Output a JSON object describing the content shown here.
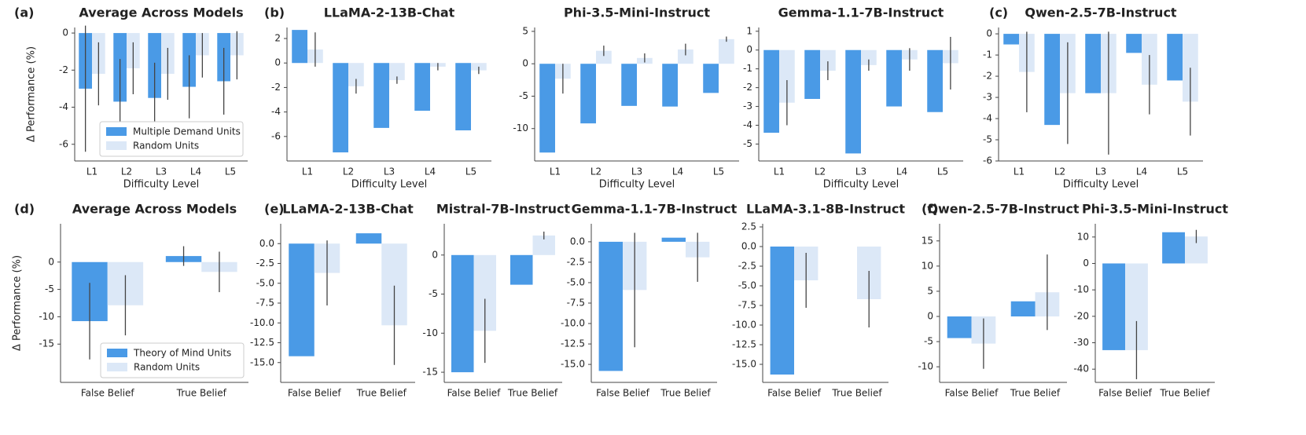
{
  "chart_data": [
    {
      "type": "bar",
      "panel_label": "(a)",
      "title": "Average Across Models",
      "xlabel": "Difficulty Level",
      "ylabel": "Δ Performance (%)",
      "categories": [
        "L1",
        "L2",
        "L3",
        "L4",
        "L5"
      ],
      "series": [
        {
          "name": "Multiple Demand Units",
          "color": "#4a9ae6",
          "values": [
            -3.0,
            -3.7,
            -3.5,
            -2.9,
            -2.6
          ],
          "errors": [
            3.4,
            2.3,
            1.9,
            1.7,
            1.8
          ]
        },
        {
          "name": "Random Units",
          "color": "#dce8f7",
          "values": [
            -2.2,
            -1.9,
            -2.2,
            -1.2,
            -1.2
          ],
          "errors": [
            1.7,
            1.4,
            1.4,
            1.2,
            1.3
          ]
        }
      ],
      "ylim": [
        -6.9,
        0.3
      ],
      "yticks": [
        -6,
        -4,
        -2,
        0
      ],
      "legend": "lower right"
    },
    {
      "type": "bar",
      "panel_label": "(b)",
      "title": "LLaMA-2-13B-Chat",
      "xlabel": "Difficulty Level",
      "categories": [
        "L1",
        "L2",
        "L3",
        "L4",
        "L5"
      ],
      "series": [
        {
          "color": "#4a9ae6",
          "values": [
            2.7,
            -7.3,
            -5.3,
            -3.9,
            -5.5
          ]
        },
        {
          "color": "#dce8f7",
          "values": [
            1.1,
            -1.9,
            -1.4,
            -0.3,
            -0.6
          ],
          "errors": [
            1.4,
            0.6,
            0.3,
            0.3,
            0.3
          ]
        }
      ],
      "ylim": [
        -8,
        2.9
      ],
      "yticks": [
        -6,
        -4,
        -2,
        0,
        2
      ]
    },
    {
      "type": "bar",
      "title": "Phi-3.5-Mini-Instruct",
      "xlabel": "Difficulty Level",
      "categories": [
        "L1",
        "L2",
        "L3",
        "L4",
        "L5"
      ],
      "series": [
        {
          "color": "#4a9ae6",
          "values": [
            -13.7,
            -9.2,
            -6.5,
            -6.6,
            -4.5
          ]
        },
        {
          "color": "#dce8f7",
          "values": [
            -2.3,
            2.0,
            0.9,
            2.2,
            3.8
          ],
          "errors": [
            2.3,
            0.8,
            0.7,
            0.9,
            0.4
          ]
        }
      ],
      "ylim": [
        -15,
        5.6
      ],
      "yticks": [
        -10,
        -5,
        0,
        5
      ]
    },
    {
      "type": "bar",
      "title": "Gemma-1.1-7B-Instruct",
      "xlabel": "Difficulty Level",
      "categories": [
        "L1",
        "L2",
        "L3",
        "L4",
        "L5"
      ],
      "series": [
        {
          "color": "#4a9ae6",
          "values": [
            -4.4,
            -2.6,
            -5.5,
            -3.0,
            -3.3
          ]
        },
        {
          "color": "#dce8f7",
          "values": [
            -2.8,
            -1.1,
            -0.8,
            -0.5,
            -0.7
          ],
          "errors": [
            1.2,
            0.5,
            0.3,
            0.6,
            1.4
          ]
        }
      ],
      "ylim": [
        -5.9,
        1.2
      ],
      "yticks": [
        -5,
        -4,
        -3,
        -2,
        -1,
        0,
        1
      ]
    },
    {
      "type": "bar",
      "panel_label": "(c)",
      "title": "Qwen-2.5-7B-Instruct",
      "xlabel": "Difficulty Level",
      "categories": [
        "L1",
        "L2",
        "L3",
        "L4",
        "L5"
      ],
      "series": [
        {
          "color": "#4a9ae6",
          "values": [
            -0.5,
            -4.3,
            -2.8,
            -0.9,
            -2.2
          ]
        },
        {
          "color": "#dce8f7",
          "values": [
            -1.8,
            -2.8,
            -2.8,
            -2.4,
            -3.2
          ],
          "errors": [
            1.9,
            2.4,
            2.9,
            1.4,
            1.6
          ]
        }
      ],
      "ylim": [
        -6,
        0.3
      ],
      "yticks": [
        -6,
        -5,
        -4,
        -3,
        -2,
        -1,
        0
      ]
    },
    {
      "type": "bar",
      "panel_label": "(d)",
      "title": "Average Across Models",
      "ylabel": "Δ Performance (%)",
      "categories": [
        "False Belief",
        "True Belief"
      ],
      "series": [
        {
          "name": "Theory of Mind Units",
          "color": "#4a9ae6",
          "values": [
            -10.8,
            1.1
          ],
          "errors": [
            7,
            1.8
          ]
        },
        {
          "name": "Random Units",
          "color": "#dce8f7",
          "values": [
            -7.9,
            -1.8
          ],
          "errors": [
            5.5,
            3.7
          ]
        }
      ],
      "ylim": [
        -22,
        7
      ],
      "yticks": [
        -15,
        -10,
        -5,
        0
      ],
      "legend": "lower right"
    },
    {
      "type": "bar",
      "panel_label": "(e)",
      "title": "LLaMA-2-13B-Chat",
      "categories": [
        "False Belief",
        "True Belief"
      ],
      "series": [
        {
          "color": "#4a9ae6",
          "values": [
            -14.2,
            1.3
          ]
        },
        {
          "color": "#dce8f7",
          "values": [
            -3.7,
            -10.3
          ],
          "errors": [
            4.1,
            5.0
          ]
        }
      ],
      "ylim": [
        -17.5,
        2.5
      ],
      "yticks": [
        {
          "value": -15,
          "label": "-15.0"
        },
        -12.5,
        {
          "value": -10,
          "label": "-10.0"
        },
        -7.5,
        {
          "value": -5,
          "label": "-5.0"
        },
        -2.5,
        {
          "value": 0,
          "label": "0.0"
        }
      ]
    },
    {
      "type": "bar",
      "title": "Mistral-7B-Instruct",
      "categories": [
        "False Belief",
        "True Belief"
      ],
      "series": [
        {
          "color": "#4a9ae6",
          "values": [
            -15.0,
            -3.8
          ]
        },
        {
          "color": "#dce8f7",
          "values": [
            -9.7,
            2.5
          ],
          "errors": [
            4.1,
            0.5
          ]
        }
      ],
      "ylim": [
        -16.3,
        4
      ],
      "yticks": [
        -15,
        -10,
        -5,
        0
      ]
    },
    {
      "type": "bar",
      "title": "Gemma-1.1-7B-Instruct",
      "categories": [
        "False Belief",
        "True Belief"
      ],
      "series": [
        {
          "color": "#4a9ae6",
          "values": [
            -15.8,
            0.5
          ]
        },
        {
          "color": "#dce8f7",
          "values": [
            -5.9,
            -1.9
          ],
          "errors": [
            7,
            3.0
          ]
        }
      ],
      "ylim": [
        -17.2,
        2.2
      ],
      "yticks": [
        {
          "value": -15,
          "label": "-15.0"
        },
        -12.5,
        {
          "value": -10,
          "label": "-10.0"
        },
        -7.5,
        {
          "value": -5,
          "label": "-5.0"
        },
        -2.5,
        {
          "value": 0,
          "label": "0.0"
        }
      ]
    },
    {
      "type": "bar",
      "title": "LLaMA-3.1-8B-Instruct",
      "categories": [
        "False Belief",
        "True Belief"
      ],
      "series": [
        {
          "color": "#4a9ae6",
          "values": [
            -16.3,
            0
          ]
        },
        {
          "color": "#dce8f7",
          "values": [
            -4.3,
            -6.7
          ],
          "errors": [
            3.5,
            3.6
          ]
        }
      ],
      "ylim": [
        -17.3,
        2.9
      ],
      "yticks": [
        {
          "value": -15,
          "label": "-15.0"
        },
        -12.5,
        {
          "value": -10,
          "label": "-10.0"
        },
        -7.5,
        {
          "value": -5,
          "label": "-5.0"
        },
        -2.5,
        {
          "value": 0,
          "label": "0.0"
        },
        2.5
      ]
    },
    {
      "type": "bar",
      "panel_label": "(f)",
      "title": "Qwen-2.5-7B-Instruct",
      "categories": [
        "False Belief",
        "True Belief"
      ],
      "series": [
        {
          "color": "#4a9ae6",
          "values": [
            -4.3,
            3.0
          ]
        },
        {
          "color": "#dce8f7",
          "values": [
            -5.4,
            4.8
          ],
          "errors": [
            5.0,
            7.5
          ]
        }
      ],
      "ylim": [
        -13.1,
        18.4
      ],
      "yticks": [
        -10,
        -5,
        0,
        5,
        10,
        15
      ]
    },
    {
      "type": "bar",
      "title": "Phi-3.5-Mini-Instruct",
      "categories": [
        "False Belief",
        "True Belief"
      ],
      "series": [
        {
          "color": "#4a9ae6",
          "values": [
            -32.8,
            11.8
          ]
        },
        {
          "color": "#dce8f7",
          "values": [
            -32.8,
            10.2
          ],
          "errors": [
            11,
            2.5
          ]
        }
      ],
      "ylim": [
        -45,
        15
      ],
      "yticks": [
        -40,
        -30,
        -20,
        -10,
        0,
        10
      ]
    }
  ]
}
